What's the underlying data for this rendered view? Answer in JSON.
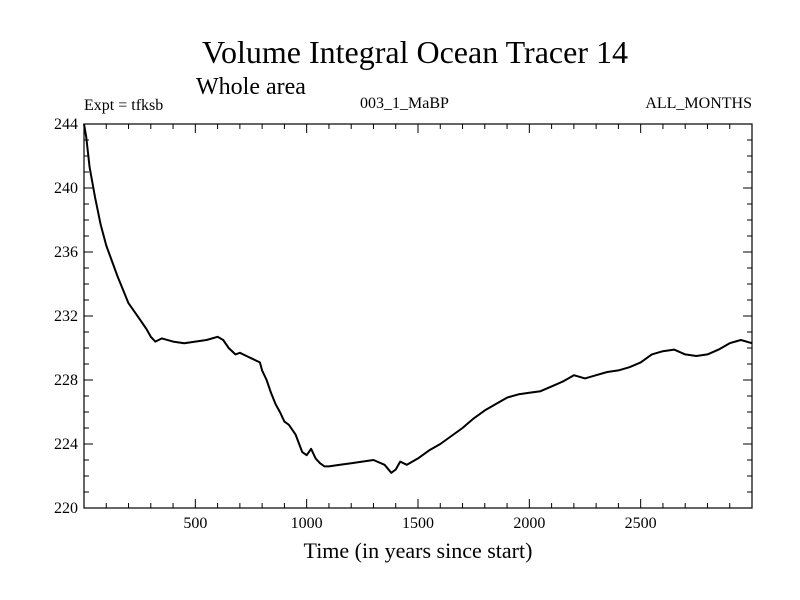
{
  "chart_data": {
    "type": "line",
    "title": "Volume Integral Ocean Tracer 14",
    "subtitle": "Whole area",
    "left_label": "Expt = tfksb",
    "center_label": "003_1_MaBP",
    "right_label": "ALL_MONTHS",
    "xlabel": "Time (in years since start)",
    "ylabel": "",
    "xlim": [
      0,
      3000
    ],
    "ylim": [
      220,
      244
    ],
    "x_ticks": [
      500,
      1000,
      1500,
      2000,
      2500
    ],
    "y_ticks": [
      220,
      224,
      228,
      232,
      236,
      240,
      244
    ],
    "grid": false,
    "series": [
      {
        "color": "#000000",
        "x": [
          0,
          10,
          25,
          50,
          75,
          100,
          150,
          200,
          250,
          280,
          300,
          320,
          350,
          400,
          450,
          500,
          550,
          600,
          625,
          650,
          680,
          700,
          730,
          760,
          790,
          800,
          820,
          840,
          860,
          880,
          900,
          920,
          950,
          980,
          1000,
          1020,
          1040,
          1060,
          1080,
          1100,
          1150,
          1200,
          1250,
          1300,
          1350,
          1380,
          1400,
          1420,
          1450,
          1500,
          1550,
          1600,
          1650,
          1700,
          1750,
          1800,
          1850,
          1900,
          1950,
          2000,
          2050,
          2100,
          2150,
          2200,
          2250,
          2300,
          2350,
          2400,
          2450,
          2500,
          2550,
          2600,
          2650,
          2700,
          2750,
          2800,
          2850,
          2900,
          2950,
          3000
        ],
        "y": [
          244,
          243.2,
          241.3,
          239.4,
          237.7,
          236.4,
          234.5,
          232.8,
          231.8,
          231.2,
          230.7,
          230.4,
          230.6,
          230.4,
          230.3,
          230.4,
          230.5,
          230.7,
          230.5,
          230.0,
          229.6,
          229.7,
          229.5,
          229.3,
          229.1,
          228.6,
          228.0,
          227.2,
          226.5,
          226.0,
          225.4,
          225.2,
          224.6,
          223.5,
          223.3,
          223.7,
          223.1,
          222.8,
          222.6,
          222.6,
          222.7,
          222.8,
          222.9,
          223.0,
          222.7,
          222.2,
          222.4,
          222.9,
          222.7,
          223.1,
          223.6,
          224.0,
          224.5,
          225.0,
          225.6,
          226.1,
          226.5,
          226.9,
          227.1,
          227.2,
          227.3,
          227.6,
          227.9,
          228.3,
          228.1,
          228.3,
          228.5,
          228.6,
          228.8,
          229.1,
          229.6,
          229.8,
          229.9,
          229.6,
          229.5,
          229.6,
          229.9,
          230.3,
          230.5,
          230.3
        ]
      }
    ]
  }
}
